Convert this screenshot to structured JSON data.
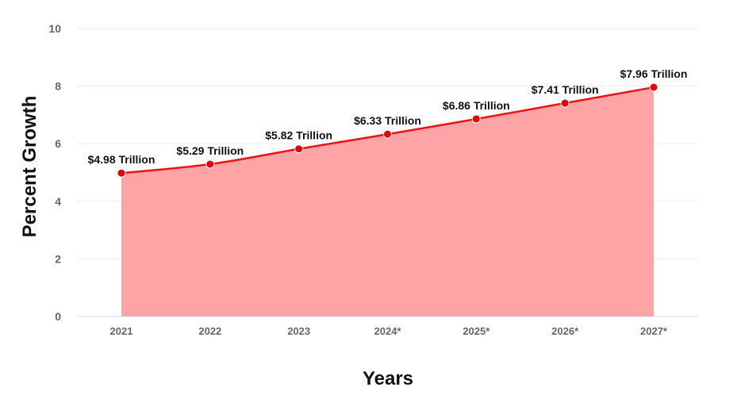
{
  "chart_data": {
    "type": "area",
    "title": "",
    "xlabel": "Years",
    "ylabel": "Percent Growth",
    "categories": [
      "2021",
      "2022",
      "2023",
      "2024*",
      "2025*",
      "2026*",
      "2027*"
    ],
    "values": [
      4.98,
      5.29,
      5.82,
      6.33,
      6.86,
      7.41,
      7.96
    ],
    "data_labels": [
      "$4.98 Trillion",
      "$5.29 Trillion",
      "$5.82 Trillion",
      "$6.33 Trillion",
      "$6.86 Trillion",
      "$7.41 Trillion",
      "$7.96 Trillion"
    ],
    "ylim": [
      0,
      10
    ],
    "yticks": [
      0,
      2,
      4,
      6,
      8,
      10
    ],
    "grid": true,
    "legend": "none",
    "colors": {
      "line": "#ee1111",
      "area": "#ffa4a6",
      "marker": "#e60000",
      "grid": "#eeeeee",
      "baseline": "#c8d8ee"
    }
  }
}
